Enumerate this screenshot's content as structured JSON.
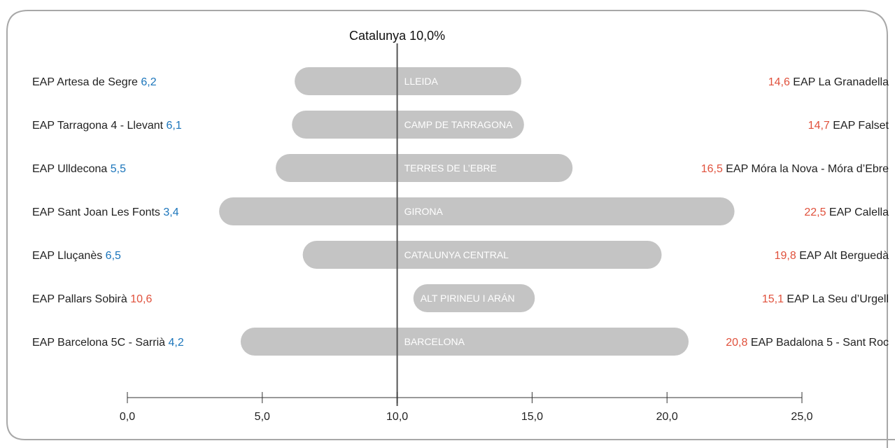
{
  "chart_data": {
    "type": "bar",
    "subtype": "range",
    "title": "",
    "reference_label": "Catalunya 10,0%",
    "reference_value": 10.0,
    "xlim": [
      0,
      25
    ],
    "x_ticks": [
      0,
      5,
      10,
      15,
      20,
      25
    ],
    "x_tick_labels": [
      "0,0",
      "5,0",
      "10,0",
      "15,0",
      "20,0",
      "25,0"
    ],
    "grid": false,
    "legend": "none",
    "colors": {
      "bar": "#c4c4c4",
      "below_reference": "#1b75bb",
      "above_reference": "#e0513c",
      "reference_line": "#555555",
      "frame": "#a8a8a8"
    },
    "rows": [
      {
        "region": "LLEIDA",
        "min": 6.2,
        "min_label": "6,2",
        "min_eap": "EAP Artesa de Segre",
        "max": 14.6,
        "max_label": "14,6",
        "max_eap": "EAP La Granadella"
      },
      {
        "region": "CAMP DE TARRAGONA",
        "min": 6.1,
        "min_label": "6,1",
        "min_eap": "EAP Tarragona 4 - Llevant",
        "max": 14.7,
        "max_label": "14,7",
        "max_eap": "EAP Falset"
      },
      {
        "region": "TERRES DE L’EBRE",
        "min": 5.5,
        "min_label": "5,5",
        "min_eap": "EAP Ulldecona",
        "max": 16.5,
        "max_label": "16,5",
        "max_eap": "EAP Móra la Nova - Móra d’Ebre"
      },
      {
        "region": "GIRONA",
        "min": 3.4,
        "min_label": "3,4",
        "min_eap": "EAP Sant Joan Les Fonts",
        "max": 22.5,
        "max_label": "22,5",
        "max_eap": "EAP Calella"
      },
      {
        "region": "CATALUNYA CENTRAL",
        "min": 6.5,
        "min_label": "6,5",
        "min_eap": "EAP  Lluçanès",
        "max": 19.8,
        "max_label": "19,8",
        "max_eap": "EAP Alt Berguedà"
      },
      {
        "region": "ALT PIRINEU I ARÁN",
        "min": 10.6,
        "min_label": "10,6",
        "min_eap": "EAP Pallars Sobirà",
        "max": 15.1,
        "max_label": "15,1",
        "max_eap": "EAP La Seu d’Urgell"
      },
      {
        "region": "BARCELONA",
        "min": 4.2,
        "min_label": "4,2",
        "min_eap": "EAP Barcelona 5C - Sarrià",
        "max": 20.8,
        "max_label": "20,8",
        "max_eap": "EAP Badalona 5 - Sant Roc"
      }
    ]
  }
}
